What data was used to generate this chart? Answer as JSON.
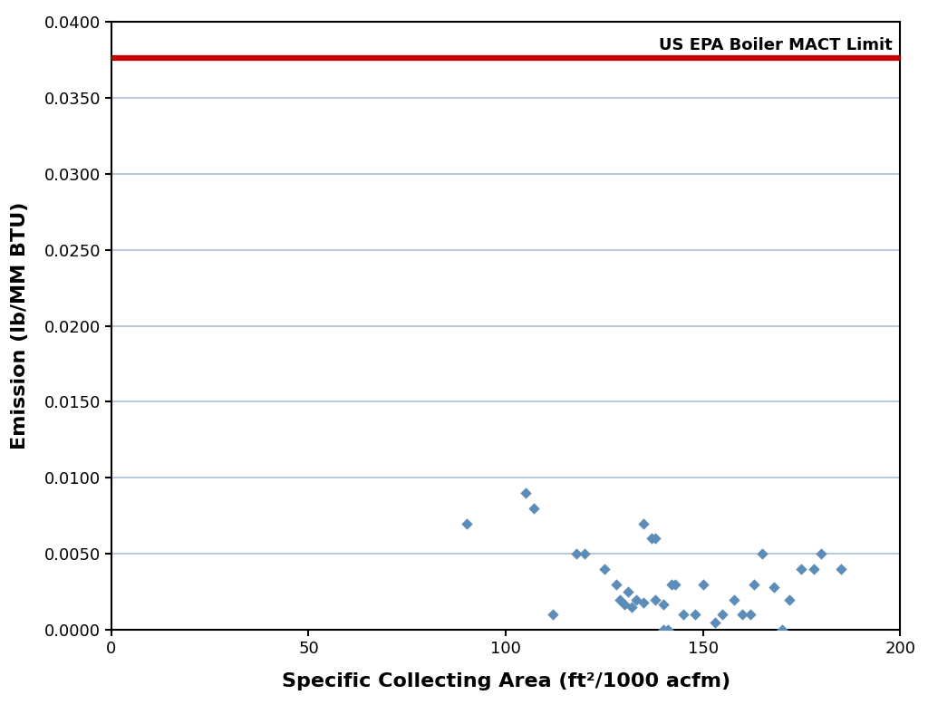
{
  "title": "",
  "xlabel": "Specific Collecting Area (ft²/1000 acfm)",
  "ylabel": "Emission (lb/MM BTU)",
  "xlim": [
    0,
    200
  ],
  "ylim": [
    0.0,
    0.04
  ],
  "yticks": [
    0.0,
    0.005,
    0.01,
    0.015,
    0.02,
    0.025,
    0.03,
    0.035,
    0.04
  ],
  "xticks": [
    0,
    50,
    100,
    150,
    200
  ],
  "mact_limit": 0.0376,
  "mact_label": "US EPA Boiler MACT Limit",
  "mact_color": "#cc0000",
  "scatter_color": "#5b8db8",
  "background_color": "#ffffff",
  "grid_color": "#aac0d8",
  "scatter_x": [
    90,
    105,
    107,
    112,
    118,
    120,
    125,
    128,
    129,
    130,
    131,
    132,
    133,
    135,
    135,
    137,
    138,
    138,
    140,
    140,
    141,
    142,
    143,
    145,
    148,
    150,
    153,
    155,
    158,
    160,
    162,
    163,
    165,
    168,
    170,
    172,
    175,
    178,
    180,
    185
  ],
  "scatter_y": [
    0.007,
    0.009,
    0.008,
    0.001,
    0.005,
    0.005,
    0.004,
    0.003,
    0.002,
    0.0017,
    0.0025,
    0.0015,
    0.002,
    0.0018,
    0.007,
    0.006,
    0.006,
    0.002,
    0.0017,
    0.0,
    0.0,
    0.003,
    0.003,
    0.001,
    0.001,
    0.003,
    0.0005,
    0.001,
    0.002,
    0.001,
    0.001,
    0.003,
    0.005,
    0.0028,
    0.0,
    0.002,
    0.004,
    0.004,
    0.005,
    0.004
  ]
}
